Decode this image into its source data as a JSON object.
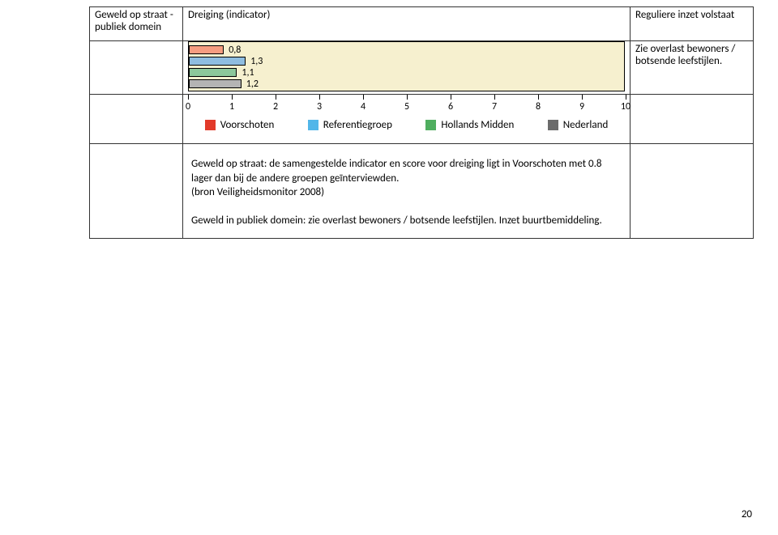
{
  "row1": {
    "left_line1": "Geweld op straat -",
    "left_line2": "publiek domein",
    "mid": "Dreiging (indicator)",
    "right": "Reguliere inzet volstaat"
  },
  "row2_right_line1": "Zie overlast bewoners /",
  "row2_right_line2": "botsende leefstijlen.",
  "chart": {
    "type": "bar",
    "bg_color": "#f6f0cf",
    "xlim": [
      0,
      10
    ],
    "xtick_step": 1,
    "bars": [
      {
        "value": 0.8,
        "label": "0,8",
        "color": "#f59d81"
      },
      {
        "value": 1.3,
        "label": "1,3",
        "color": "#8fbde0"
      },
      {
        "value": 1.1,
        "label": "1,1",
        "color": "#8cc79b"
      },
      {
        "value": 1.2,
        "label": "1,2",
        "color": "#b4b4b4"
      }
    ],
    "legend": [
      {
        "label": "Voorschoten",
        "color": "#e23a2a"
      },
      {
        "label": "Referentiegroep",
        "color": "#52b6e9"
      },
      {
        "label": "Hollands Midden",
        "color": "#4fae5f"
      },
      {
        "label": "Nederland",
        "color": "#6b6b6b"
      }
    ]
  },
  "body": {
    "p1": "Geweld op straat: de samengestelde indicator en score voor dreiging ligt in Voorschoten met 0.8 lager dan bij de andere groepen geïnterviewden.",
    "p1b": "(bron Veiligheidsmonitor 2008)",
    "p2": "Geweld in publiek domein: zie overlast bewoners / botsende leefstijlen. Inzet buurtbemiddeling."
  },
  "page_number": "20"
}
